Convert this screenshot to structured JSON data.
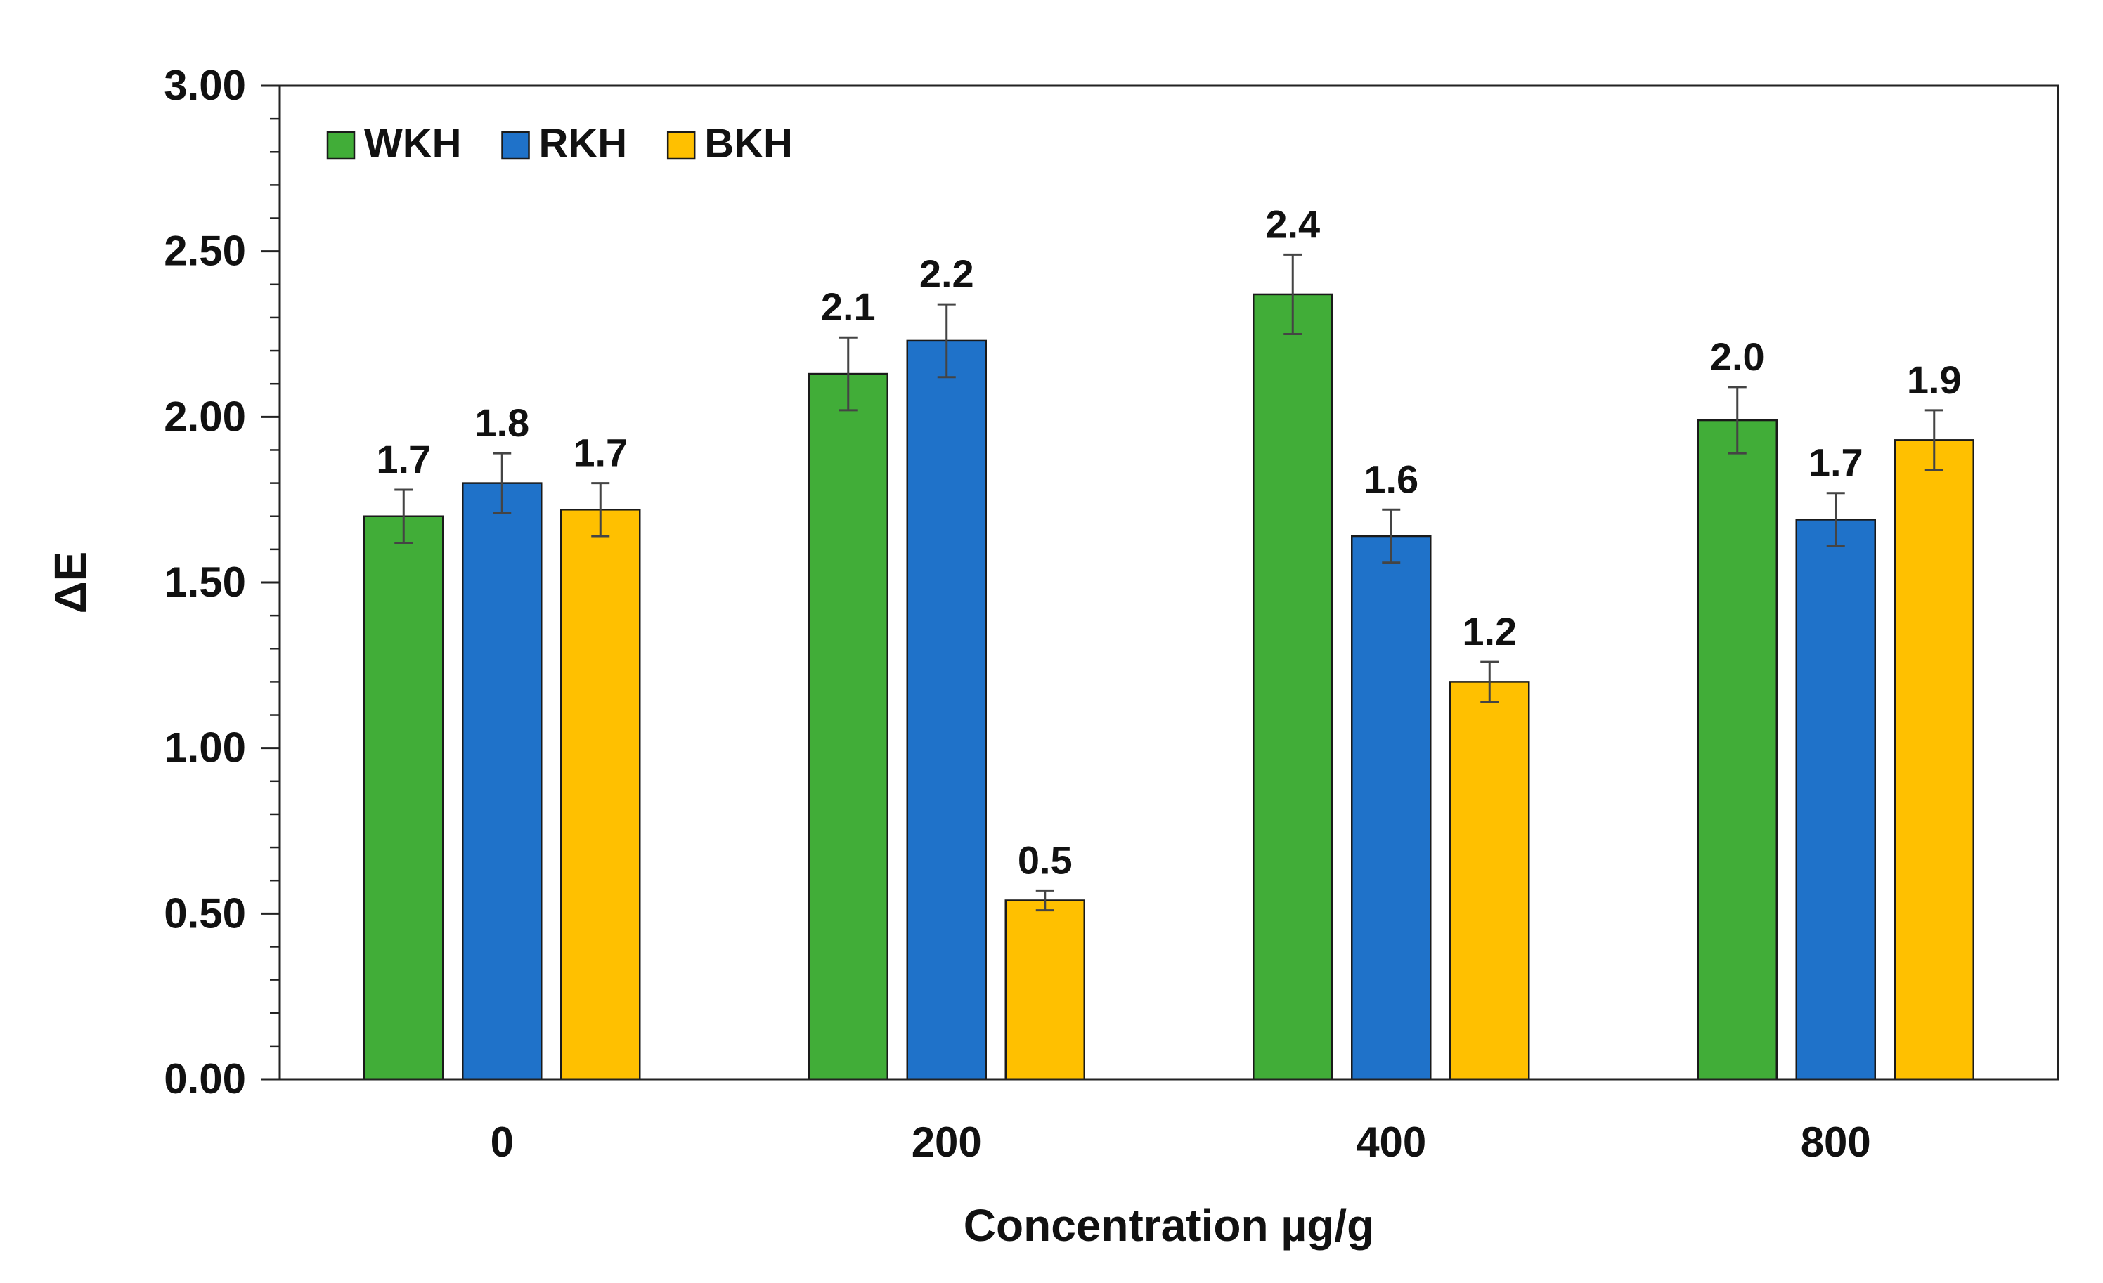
{
  "chart_data": {
    "type": "bar",
    "title": "",
    "xlabel": "Concentration µg/g",
    "ylabel": "ΔE",
    "categories": [
      "0",
      "200",
      "400",
      "800"
    ],
    "ylim": [
      0,
      3.0
    ],
    "y_ticks": [
      "0.00",
      "0.50",
      "1.00",
      "1.50",
      "2.00",
      "2.50",
      "3.00"
    ],
    "grid": false,
    "legend_position": "top-left",
    "series": [
      {
        "name": "WKH",
        "color": "#41AD38",
        "values": [
          1.7,
          2.13,
          2.37,
          1.99
        ],
        "errors": [
          0.08,
          0.11,
          0.12,
          0.1
        ],
        "labels": [
          "1.7",
          "2.1",
          "2.4",
          "2.0"
        ]
      },
      {
        "name": "RKH",
        "color": "#1F72C9",
        "values": [
          1.8,
          2.23,
          1.64,
          1.69
        ],
        "errors": [
          0.09,
          0.11,
          0.08,
          0.08
        ],
        "labels": [
          "1.8",
          "2.2",
          "1.6",
          "1.7"
        ]
      },
      {
        "name": "BKH",
        "color": "#FFC000",
        "values": [
          1.72,
          0.54,
          1.2,
          1.93
        ],
        "errors": [
          0.08,
          0.03,
          0.06,
          0.09
        ],
        "labels": [
          "1.7",
          "0.5",
          "1.2",
          "1.9"
        ]
      }
    ]
  }
}
